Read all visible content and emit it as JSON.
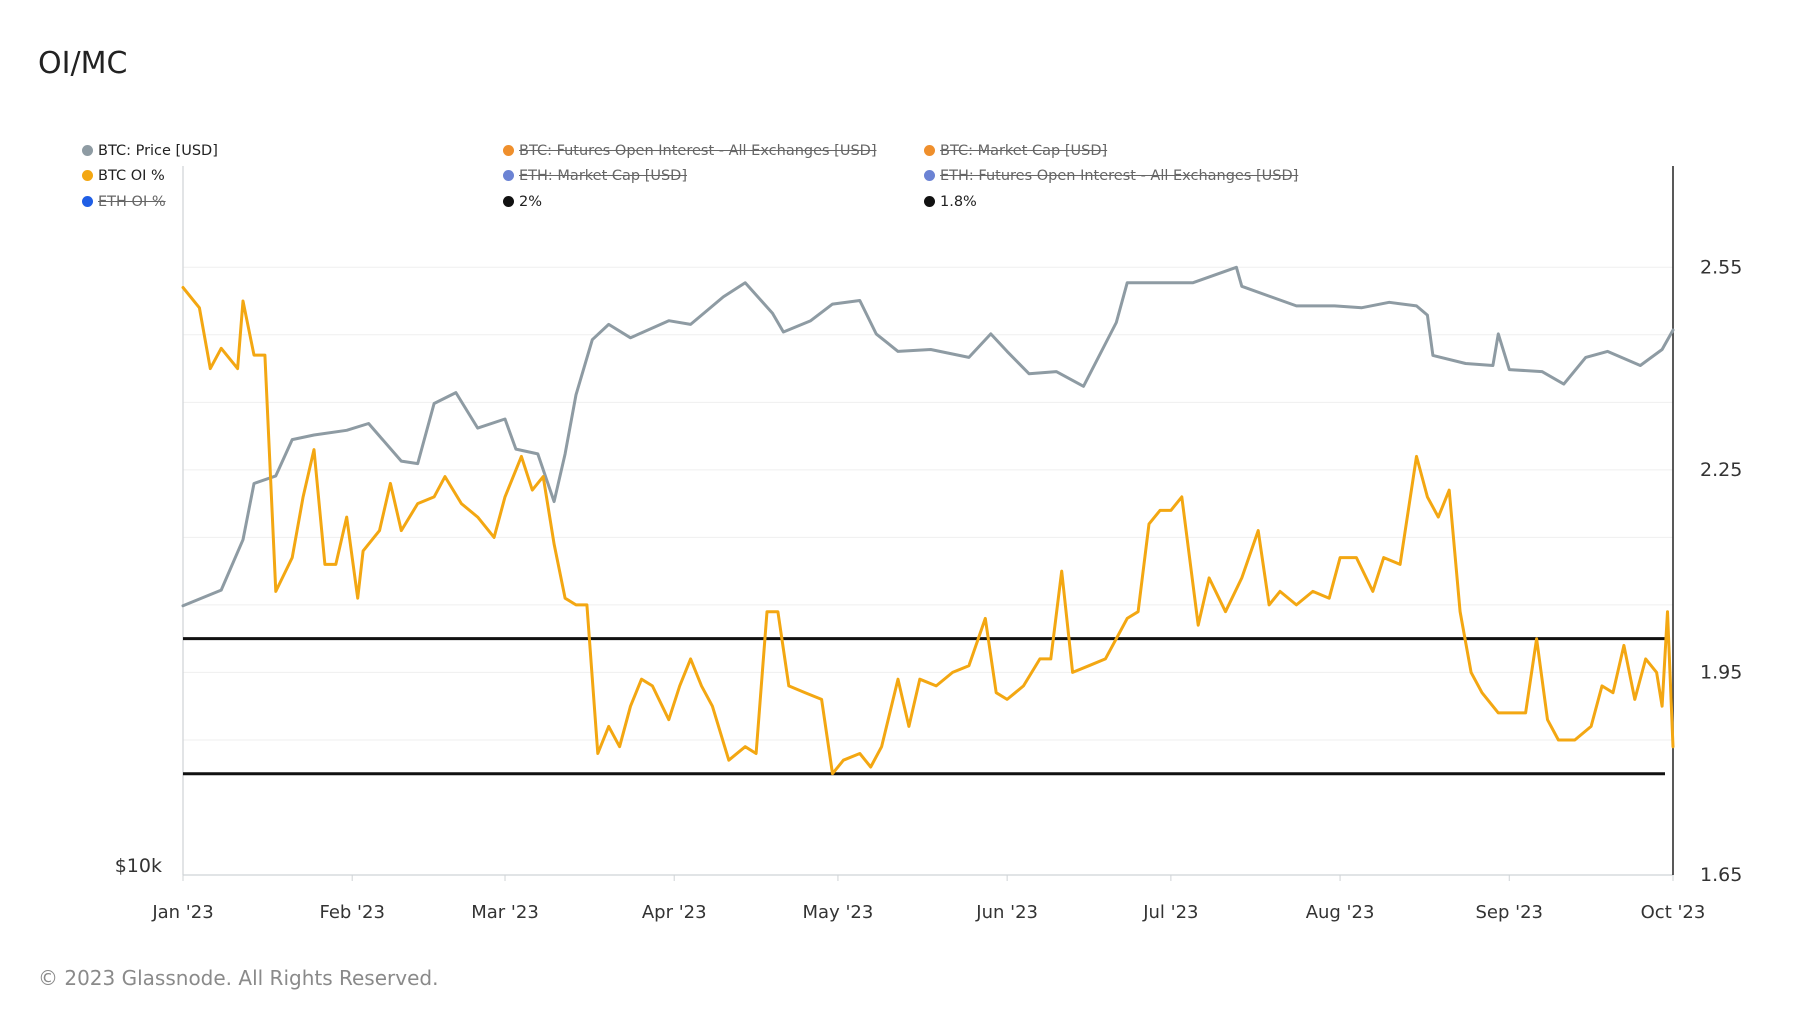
{
  "title": "OI/MC",
  "footer": "© 2023 Glassnode. All Rights Reserved.",
  "colors": {
    "price": "#8e9ba3",
    "oi": "#f3a712",
    "ref": "#111111",
    "legend_orange": "#ef8f2c",
    "legend_blue": "#6b83d4",
    "legend_eth_oi": "#1f5ee5",
    "legend_black": "#111111"
  },
  "legend": [
    {
      "label": "BTC: Price [USD]",
      "color": "#8e9ba3",
      "active": true
    },
    {
      "label": "BTC: Futures Open Interest - All Exchanges [USD]",
      "color": "#ef8f2c",
      "active": false
    },
    {
      "label": "BTC: Market Cap [USD]",
      "color": "#ef8f2c",
      "active": false
    },
    {
      "label": "BTC OI %",
      "color": "#f3a712",
      "active": true
    },
    {
      "label": "ETH: Market Cap [USD]",
      "color": "#6b83d4",
      "active": false
    },
    {
      "label": "ETH: Futures Open Interest - All Exchanges [USD]",
      "color": "#6b83d4",
      "active": false
    },
    {
      "label": "ETH OI %",
      "color": "#1f5ee5",
      "active": false
    },
    {
      "label": "2%",
      "color": "#111111",
      "active": true
    },
    {
      "label": "1.8%",
      "color": "#111111",
      "active": true
    }
  ],
  "chart_data": {
    "type": "line",
    "x_ticks": [
      "Jan '23",
      "Feb '23",
      "Mar '23",
      "Apr '23",
      "May '23",
      "Jun '23",
      "Jul '23",
      "Aug '23",
      "Sep '23",
      "Oct '23"
    ],
    "x_range": [
      "2023-01-01",
      "2023-10-01"
    ],
    "left_axis": {
      "scale": "log",
      "ticks": [
        "$10k"
      ]
    },
    "right_axis": {
      "ticks": [
        "2.55",
        "2.25",
        "1.95",
        "1.65"
      ],
      "ylim": [
        1.65,
        2.7
      ]
    },
    "grid": true,
    "legend_position": "top-left",
    "series": [
      {
        "name": "BTC: Price [USD]",
        "axis": "left",
        "unit": "USD",
        "points": [
          [
            "2023-01-01",
            16600
          ],
          [
            "2023-01-08",
            17100
          ],
          [
            "2023-01-12",
            18800
          ],
          [
            "2023-01-14",
            20900
          ],
          [
            "2023-01-18",
            21200
          ],
          [
            "2023-01-21",
            22700
          ],
          [
            "2023-01-25",
            22900
          ],
          [
            "2023-01-31",
            23100
          ],
          [
            "2023-02-04",
            23400
          ],
          [
            "2023-02-10",
            21800
          ],
          [
            "2023-02-13",
            21700
          ],
          [
            "2023-02-16",
            24300
          ],
          [
            "2023-02-20",
            24800
          ],
          [
            "2023-02-24",
            23200
          ],
          [
            "2023-03-01",
            23600
          ],
          [
            "2023-03-03",
            22300
          ],
          [
            "2023-03-07",
            22100
          ],
          [
            "2023-03-10",
            20200
          ],
          [
            "2023-03-12",
            22100
          ],
          [
            "2023-03-14",
            24700
          ],
          [
            "2023-03-17",
            27400
          ],
          [
            "2023-03-20",
            28200
          ],
          [
            "2023-03-24",
            27500
          ],
          [
            "2023-03-31",
            28400
          ],
          [
            "2023-04-04",
            28200
          ],
          [
            "2023-04-10",
            29700
          ],
          [
            "2023-04-14",
            30500
          ],
          [
            "2023-04-19",
            28800
          ],
          [
            "2023-04-21",
            27800
          ],
          [
            "2023-04-26",
            28400
          ],
          [
            "2023-04-30",
            29300
          ],
          [
            "2023-05-05",
            29500
          ],
          [
            "2023-05-08",
            27700
          ],
          [
            "2023-05-12",
            26800
          ],
          [
            "2023-05-18",
            26900
          ],
          [
            "2023-05-25",
            26500
          ],
          [
            "2023-05-29",
            27700
          ],
          [
            "2023-06-01",
            26800
          ],
          [
            "2023-06-05",
            25700
          ],
          [
            "2023-06-10",
            25800
          ],
          [
            "2023-06-15",
            25100
          ],
          [
            "2023-06-21",
            28300
          ],
          [
            "2023-06-23",
            30500
          ],
          [
            "2023-06-30",
            30500
          ],
          [
            "2023-07-05",
            30500
          ],
          [
            "2023-07-13",
            31400
          ],
          [
            "2023-07-14",
            30300
          ],
          [
            "2023-07-24",
            29200
          ],
          [
            "2023-07-31",
            29200
          ],
          [
            "2023-08-05",
            29100
          ],
          [
            "2023-08-10",
            29400
          ],
          [
            "2023-08-15",
            29200
          ],
          [
            "2023-08-17",
            28700
          ],
          [
            "2023-08-18",
            26600
          ],
          [
            "2023-08-24",
            26200
          ],
          [
            "2023-08-29",
            26100
          ],
          [
            "2023-08-30",
            27700
          ],
          [
            "2023-09-01",
            25900
          ],
          [
            "2023-09-07",
            25800
          ],
          [
            "2023-09-11",
            25200
          ],
          [
            "2023-09-15",
            26500
          ],
          [
            "2023-09-19",
            26800
          ],
          [
            "2023-09-25",
            26100
          ],
          [
            "2023-09-29",
            26900
          ],
          [
            "2023-10-01",
            27900
          ]
        ]
      },
      {
        "name": "BTC OI %",
        "axis": "right",
        "unit": "%",
        "points": [
          [
            "2023-01-01",
            2.52
          ],
          [
            "2023-01-04",
            2.49
          ],
          [
            "2023-01-06",
            2.4
          ],
          [
            "2023-01-08",
            2.43
          ],
          [
            "2023-01-11",
            2.4
          ],
          [
            "2023-01-12",
            2.5
          ],
          [
            "2023-01-14",
            2.42
          ],
          [
            "2023-01-16",
            2.42
          ],
          [
            "2023-01-18",
            2.07
          ],
          [
            "2023-01-21",
            2.12
          ],
          [
            "2023-01-23",
            2.21
          ],
          [
            "2023-01-25",
            2.28
          ],
          [
            "2023-01-27",
            2.11
          ],
          [
            "2023-01-29",
            2.11
          ],
          [
            "2023-01-31",
            2.18
          ],
          [
            "2023-02-02",
            2.06
          ],
          [
            "2023-02-03",
            2.13
          ],
          [
            "2023-02-06",
            2.16
          ],
          [
            "2023-02-08",
            2.23
          ],
          [
            "2023-02-10",
            2.16
          ],
          [
            "2023-02-13",
            2.2
          ],
          [
            "2023-02-16",
            2.21
          ],
          [
            "2023-02-18",
            2.24
          ],
          [
            "2023-02-21",
            2.2
          ],
          [
            "2023-02-24",
            2.18
          ],
          [
            "2023-02-27",
            2.15
          ],
          [
            "2023-03-01",
            2.21
          ],
          [
            "2023-03-04",
            2.27
          ],
          [
            "2023-03-06",
            2.22
          ],
          [
            "2023-03-08",
            2.24
          ],
          [
            "2023-03-10",
            2.14
          ],
          [
            "2023-03-12",
            2.06
          ],
          [
            "2023-03-14",
            2.05
          ],
          [
            "2023-03-16",
            2.05
          ],
          [
            "2023-03-18",
            1.83
          ],
          [
            "2023-03-20",
            1.87
          ],
          [
            "2023-03-22",
            1.84
          ],
          [
            "2023-03-24",
            1.9
          ],
          [
            "2023-03-26",
            1.94
          ],
          [
            "2023-03-28",
            1.93
          ],
          [
            "2023-03-31",
            1.88
          ],
          [
            "2023-04-02",
            1.93
          ],
          [
            "2023-04-04",
            1.97
          ],
          [
            "2023-04-06",
            1.93
          ],
          [
            "2023-04-08",
            1.9
          ],
          [
            "2023-04-11",
            1.82
          ],
          [
            "2023-04-14",
            1.84
          ],
          [
            "2023-04-16",
            1.83
          ],
          [
            "2023-04-18",
            2.04
          ],
          [
            "2023-04-20",
            2.04
          ],
          [
            "2023-04-22",
            1.93
          ],
          [
            "2023-04-25",
            1.92
          ],
          [
            "2023-04-28",
            1.91
          ],
          [
            "2023-04-30",
            1.8
          ],
          [
            "2023-05-02",
            1.82
          ],
          [
            "2023-05-05",
            1.83
          ],
          [
            "2023-05-07",
            1.81
          ],
          [
            "2023-05-09",
            1.84
          ],
          [
            "2023-05-12",
            1.94
          ],
          [
            "2023-05-14",
            1.87
          ],
          [
            "2023-05-16",
            1.94
          ],
          [
            "2023-05-19",
            1.93
          ],
          [
            "2023-05-22",
            1.95
          ],
          [
            "2023-05-25",
            1.96
          ],
          [
            "2023-05-28",
            2.03
          ],
          [
            "2023-05-30",
            1.92
          ],
          [
            "2023-06-01",
            1.91
          ],
          [
            "2023-06-04",
            1.93
          ],
          [
            "2023-06-07",
            1.97
          ],
          [
            "2023-06-09",
            1.97
          ],
          [
            "2023-06-11",
            2.1
          ],
          [
            "2023-06-13",
            1.95
          ],
          [
            "2023-06-16",
            1.96
          ],
          [
            "2023-06-19",
            1.97
          ],
          [
            "2023-06-21",
            2.0
          ],
          [
            "2023-06-23",
            2.03
          ],
          [
            "2023-06-25",
            2.04
          ],
          [
            "2023-06-27",
            2.17
          ],
          [
            "2023-06-29",
            2.19
          ],
          [
            "2023-07-01",
            2.19
          ],
          [
            "2023-07-03",
            2.21
          ],
          [
            "2023-07-06",
            2.02
          ],
          [
            "2023-07-08",
            2.09
          ],
          [
            "2023-07-11",
            2.04
          ],
          [
            "2023-07-14",
            2.09
          ],
          [
            "2023-07-17",
            2.16
          ],
          [
            "2023-07-19",
            2.05
          ],
          [
            "2023-07-21",
            2.07
          ],
          [
            "2023-07-24",
            2.05
          ],
          [
            "2023-07-27",
            2.07
          ],
          [
            "2023-07-30",
            2.06
          ],
          [
            "2023-08-01",
            2.12
          ],
          [
            "2023-08-04",
            2.12
          ],
          [
            "2023-08-07",
            2.07
          ],
          [
            "2023-08-09",
            2.12
          ],
          [
            "2023-08-12",
            2.11
          ],
          [
            "2023-08-15",
            2.27
          ],
          [
            "2023-08-17",
            2.21
          ],
          [
            "2023-08-19",
            2.18
          ],
          [
            "2023-08-21",
            2.22
          ],
          [
            "2023-08-23",
            2.04
          ],
          [
            "2023-08-25",
            1.95
          ],
          [
            "2023-08-27",
            1.92
          ],
          [
            "2023-08-30",
            1.89
          ],
          [
            "2023-09-01",
            1.89
          ],
          [
            "2023-09-04",
            1.89
          ],
          [
            "2023-09-06",
            2.0
          ],
          [
            "2023-09-08",
            1.88
          ],
          [
            "2023-09-10",
            1.85
          ],
          [
            "2023-09-13",
            1.85
          ],
          [
            "2023-09-16",
            1.87
          ],
          [
            "2023-09-18",
            1.93
          ],
          [
            "2023-09-20",
            1.92
          ],
          [
            "2023-09-22",
            1.99
          ],
          [
            "2023-09-24",
            1.91
          ],
          [
            "2023-09-26",
            1.97
          ],
          [
            "2023-09-28",
            1.95
          ],
          [
            "2023-09-29",
            1.9
          ],
          [
            "2023-09-30",
            2.04
          ],
          [
            "2023-10-01",
            1.84
          ]
        ]
      },
      {
        "name": "2%",
        "axis": "right",
        "constant": 2.0
      },
      {
        "name": "1.8%",
        "axis": "right",
        "constant": 1.8
      }
    ]
  }
}
